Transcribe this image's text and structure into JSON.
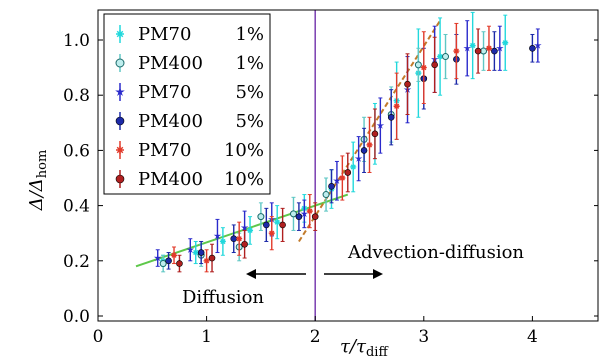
{
  "chart_data": {
    "type": "scatter",
    "xlabel": "τ/τ_diff",
    "ylabel": "Δ/Δ_hom",
    "xlim": [
      0,
      4.45
    ],
    "ylim": [
      0,
      1.1
    ],
    "x_ticks": [
      "0",
      "1",
      "2",
      "3",
      "4"
    ],
    "y_ticks": [
      "0.0",
      "0.2",
      "0.4",
      "0.6",
      "0.8",
      "1.0"
    ],
    "x_tick_values": [
      0,
      1,
      2,
      3,
      4
    ],
    "y_tick_values": [
      0.0,
      0.2,
      0.4,
      0.6,
      0.8,
      1.0
    ],
    "grid": false,
    "legend_position": "top-left",
    "vertical_line": {
      "x": 2.0,
      "color": "#7a3fb0"
    },
    "annotations": {
      "diffusion": "Diffusion",
      "advection": "Advection-diffusion"
    },
    "fit_lines": [
      {
        "color": "#5ec84a",
        "points": [
          [
            0.35,
            0.18
          ],
          [
            2.3,
            0.44
          ]
        ]
      },
      {
        "color": "#c27a2a",
        "points": [
          [
            1.85,
            0.27
          ],
          [
            3.15,
            1.07
          ]
        ]
      }
    ],
    "series": [
      {
        "name": "PM70",
        "pct": "1%",
        "color": "#22d8dc",
        "marker": "cross",
        "points": [
          [
            0.6,
            0.2,
            0.02
          ],
          [
            0.9,
            0.23,
            0.04
          ],
          [
            1.15,
            0.27,
            0.05
          ],
          [
            1.4,
            0.31,
            0.05
          ],
          [
            1.65,
            0.34,
            0.06
          ],
          [
            1.9,
            0.39,
            0.05
          ],
          [
            2.15,
            0.46,
            0.07
          ],
          [
            2.35,
            0.54,
            0.09
          ],
          [
            2.55,
            0.66,
            0.11
          ],
          [
            2.75,
            0.78,
            0.14
          ],
          [
            2.95,
            0.88,
            0.16
          ],
          [
            3.15,
            0.94,
            0.14
          ],
          [
            3.45,
            0.98,
            0.12
          ],
          [
            3.75,
            0.99,
            0.1
          ]
        ]
      },
      {
        "name": "PM400",
        "pct": "1%",
        "color": "#5fc7c4",
        "marker": "circle-open",
        "points": [
          [
            0.6,
            0.19,
            0.03
          ],
          [
            0.95,
            0.22,
            0.04
          ],
          [
            1.3,
            0.25,
            0.05
          ],
          [
            1.5,
            0.36,
            0.05
          ],
          [
            1.8,
            0.37,
            0.06
          ],
          [
            2.1,
            0.44,
            0.06
          ],
          [
            2.45,
            0.64,
            0.08
          ],
          [
            2.7,
            0.73,
            0.1
          ],
          [
            2.95,
            0.91,
            0.06
          ],
          [
            3.2,
            0.94,
            0.08
          ],
          [
            3.55,
            0.96,
            0.07
          ]
        ]
      },
      {
        "name": "PM70",
        "pct": "5%",
        "color": "#2a2acb",
        "marker": "star",
        "points": [
          [
            0.55,
            0.21,
            0.03
          ],
          [
            0.85,
            0.24,
            0.04
          ],
          [
            1.1,
            0.29,
            0.06
          ],
          [
            1.35,
            0.32,
            0.06
          ],
          [
            1.6,
            0.35,
            0.06
          ],
          [
            1.9,
            0.37,
            0.05
          ],
          [
            2.2,
            0.49,
            0.07
          ],
          [
            2.4,
            0.57,
            0.08
          ],
          [
            2.6,
            0.69,
            0.1
          ],
          [
            2.85,
            0.82,
            0.12
          ],
          [
            3.1,
            0.93,
            0.12
          ],
          [
            3.4,
            0.97,
            0.1
          ],
          [
            3.7,
            0.97,
            0.08
          ],
          [
            4.05,
            0.98,
            0.06
          ]
        ]
      },
      {
        "name": "PM400",
        "pct": "5%",
        "color": "#1c2aa8",
        "marker": "circle",
        "points": [
          [
            0.65,
            0.2,
            0.03
          ],
          [
            0.95,
            0.23,
            0.04
          ],
          [
            1.25,
            0.28,
            0.05
          ],
          [
            1.55,
            0.33,
            0.06
          ],
          [
            1.85,
            0.36,
            0.05
          ],
          [
            2.15,
            0.47,
            0.06
          ],
          [
            2.45,
            0.6,
            0.08
          ],
          [
            2.7,
            0.72,
            0.1
          ],
          [
            3.0,
            0.86,
            0.11
          ],
          [
            3.3,
            0.93,
            0.09
          ],
          [
            3.65,
            0.96,
            0.07
          ],
          [
            4.0,
            0.97,
            0.05
          ]
        ]
      },
      {
        "name": "PM70",
        "pct": "10%",
        "color": "#e23a2a",
        "marker": "cross",
        "points": [
          [
            0.7,
            0.22,
            0.03
          ],
          [
            1.0,
            0.2,
            0.04
          ],
          [
            1.3,
            0.28,
            0.06
          ],
          [
            1.6,
            0.3,
            0.06
          ],
          [
            1.95,
            0.38,
            0.06
          ],
          [
            2.25,
            0.5,
            0.08
          ],
          [
            2.5,
            0.62,
            0.1
          ],
          [
            2.75,
            0.76,
            0.12
          ],
          [
            3.0,
            0.9,
            0.13
          ],
          [
            3.3,
            0.96,
            0.1
          ],
          [
            3.6,
            0.97,
            0.08
          ]
        ]
      },
      {
        "name": "PM400",
        "pct": "10%",
        "color": "#b02020",
        "marker": "circle",
        "points": [
          [
            0.75,
            0.19,
            0.03
          ],
          [
            1.05,
            0.21,
            0.05
          ],
          [
            1.35,
            0.26,
            0.05
          ],
          [
            1.7,
            0.33,
            0.06
          ],
          [
            2.0,
            0.36,
            0.05
          ],
          [
            2.3,
            0.52,
            0.07
          ],
          [
            2.55,
            0.66,
            0.09
          ],
          [
            2.85,
            0.84,
            0.11
          ],
          [
            3.1,
            0.91,
            0.1
          ],
          [
            3.5,
            0.96,
            0.08
          ]
        ]
      }
    ]
  }
}
